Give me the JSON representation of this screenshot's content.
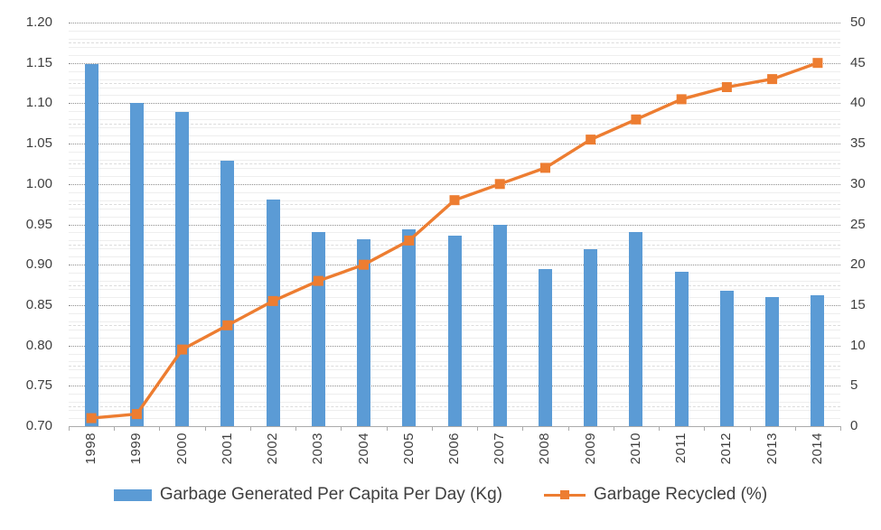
{
  "chart_data": {
    "type": "combo",
    "subtype": [
      "bar",
      "line"
    ],
    "categories": [
      "1998",
      "1999",
      "2000",
      "2001",
      "2002",
      "2003",
      "2004",
      "2005",
      "2006",
      "2007",
      "2008",
      "2009",
      "2010",
      "2011",
      "2012",
      "2013",
      "2014"
    ],
    "series": [
      {
        "name": "Garbage Generated Per Capita Per Day (Kg)",
        "type": "bar",
        "axis": "left",
        "color": "#5B9BD5",
        "values": [
          1.148,
          1.1,
          1.089,
          1.029,
          0.981,
          0.94,
          0.932,
          0.944,
          0.936,
          0.95,
          0.895,
          0.919,
          0.941,
          0.891,
          0.868,
          0.86,
          0.862
        ]
      },
      {
        "name": "Garbage Recycled (%)",
        "type": "line",
        "axis": "right",
        "color": "#ED7D31",
        "marker": "square",
        "values": [
          1,
          1.5,
          9.5,
          12.5,
          15.5,
          18,
          20,
          23,
          28,
          30,
          32,
          35.5,
          38,
          40.5,
          42,
          43,
          45
        ]
      }
    ],
    "left_axis": {
      "min": 0.7,
      "max": 1.2,
      "major_step": 0.05,
      "minor_step": 0.01,
      "decimals": 2
    },
    "right_axis": {
      "min": 0,
      "max": 50,
      "major_step": 5
    },
    "grid": {
      "major": true,
      "minor": true,
      "dashed_half_majors": true
    },
    "legend_position": "bottom",
    "title": ""
  }
}
